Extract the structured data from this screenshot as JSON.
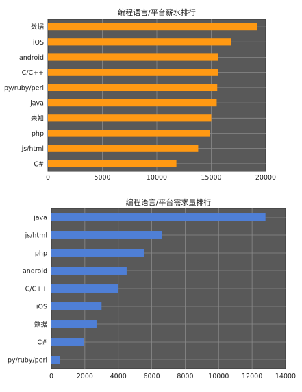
{
  "chart_data": [
    {
      "type": "bar",
      "orientation": "horizontal",
      "title": "编程语言/平台薪水排行",
      "categories": [
        "数据",
        "iOS",
        "android",
        "C/C++",
        "py/ruby/perl",
        "java",
        "未知",
        "php",
        "js/html",
        "C#"
      ],
      "values": [
        19200,
        16800,
        15600,
        15600,
        15550,
        15500,
        15000,
        14850,
        13800,
        11800
      ],
      "xlim": [
        0,
        20000
      ],
      "xticks": [
        0,
        5000,
        10000,
        15000,
        20000
      ],
      "grid": true,
      "colors": {
        "bar": "#ff9913",
        "plot_bg": "#595959",
        "grid": "#8a8a8a"
      }
    },
    {
      "type": "bar",
      "orientation": "horizontal",
      "title": "编程语言/平台需求量排行",
      "categories": [
        "java",
        "js/html",
        "php",
        "android",
        "C/C++",
        "iOS",
        "数据",
        "C#",
        "py/ruby/perl"
      ],
      "values": [
        12800,
        6600,
        5550,
        4500,
        4000,
        3000,
        2700,
        1950,
        500
      ],
      "xlim": [
        0,
        14000
      ],
      "xticks": [
        0,
        2000,
        4000,
        6000,
        8000,
        10000,
        12000,
        14000
      ],
      "grid": true,
      "colors": {
        "bar": "#4f7fd6",
        "plot_bg": "#595959",
        "grid": "#8a8a8a"
      }
    }
  ]
}
